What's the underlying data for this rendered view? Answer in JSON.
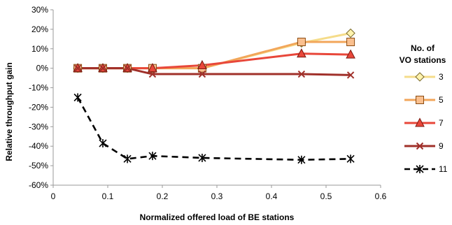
{
  "chart_data": {
    "type": "line",
    "xlabel": "Normalized offered load of BE stations",
    "ylabel": "Relative throughput gain",
    "xlim": [
      0,
      0.6
    ],
    "ylim": [
      -60,
      30
    ],
    "x_ticks": [
      {
        "value": 0,
        "label": "0"
      },
      {
        "value": 0.1,
        "label": "0.1"
      },
      {
        "value": 0.2,
        "label": "0.2"
      },
      {
        "value": 0.3,
        "label": "0.3"
      },
      {
        "value": 0.4,
        "label": "0.4"
      },
      {
        "value": 0.5,
        "label": "0.5"
      },
      {
        "value": 0.6,
        "label": "0.6"
      }
    ],
    "y_ticks": [
      {
        "value": 30,
        "label": "30%"
      },
      {
        "value": 20,
        "label": "20%"
      },
      {
        "value": 10,
        "label": "10%"
      },
      {
        "value": 0,
        "label": "0%"
      },
      {
        "value": -10,
        "label": "-10%"
      },
      {
        "value": -20,
        "label": "-20%"
      },
      {
        "value": -30,
        "label": "-30%"
      },
      {
        "value": -40,
        "label": "-40%"
      },
      {
        "value": -50,
        "label": "-50%"
      },
      {
        "value": -60,
        "label": "-60%"
      }
    ],
    "grid": false,
    "legend": {
      "title_lines": [
        "No. of",
        "VO stations"
      ],
      "position": "right"
    },
    "series": [
      {
        "name": "3",
        "color": "#F5DC8A",
        "marker": "diamond",
        "marker_fill": "#FFF3AE",
        "marker_stroke": "#7A6A2A",
        "dashed": false,
        "x": [
          0.045,
          0.091,
          0.136,
          0.182,
          0.273,
          0.455,
          0.545
        ],
        "y": [
          0,
          0,
          0,
          0,
          0,
          13,
          18
        ]
      },
      {
        "name": "5",
        "color": "#F2A65A",
        "marker": "square",
        "marker_fill": "#FAC08F",
        "marker_stroke": "#8A4A10",
        "dashed": false,
        "x": [
          0.045,
          0.091,
          0.136,
          0.182,
          0.273,
          0.455,
          0.545
        ],
        "y": [
          0,
          0,
          0,
          0,
          0,
          13.5,
          13.5
        ]
      },
      {
        "name": "7",
        "color": "#E8473A",
        "marker": "triangle",
        "marker_fill": "#E8473A",
        "marker_stroke": "#7A1A10",
        "dashed": false,
        "x": [
          0.045,
          0.091,
          0.136,
          0.182,
          0.273,
          0.455,
          0.545
        ],
        "y": [
          0,
          0,
          0,
          0,
          1.5,
          7.5,
          7
        ]
      },
      {
        "name": "9",
        "color": "#A0302A",
        "marker": "x",
        "marker_fill": "none",
        "marker_stroke": "#A0302A",
        "dashed": false,
        "x": [
          0.045,
          0.091,
          0.136,
          0.182,
          0.273,
          0.455,
          0.545
        ],
        "y": [
          0,
          0,
          0,
          -3,
          -3,
          -3,
          -3.5
        ]
      },
      {
        "name": "11",
        "color": "#000000",
        "marker": "star",
        "marker_fill": "none",
        "marker_stroke": "#000000",
        "dashed": true,
        "x": [
          0.045,
          0.091,
          0.136,
          0.182,
          0.273,
          0.455,
          0.545
        ],
        "y": [
          -15,
          -38.5,
          -46.5,
          -45,
          -46,
          -47,
          -46.5
        ]
      }
    ]
  }
}
